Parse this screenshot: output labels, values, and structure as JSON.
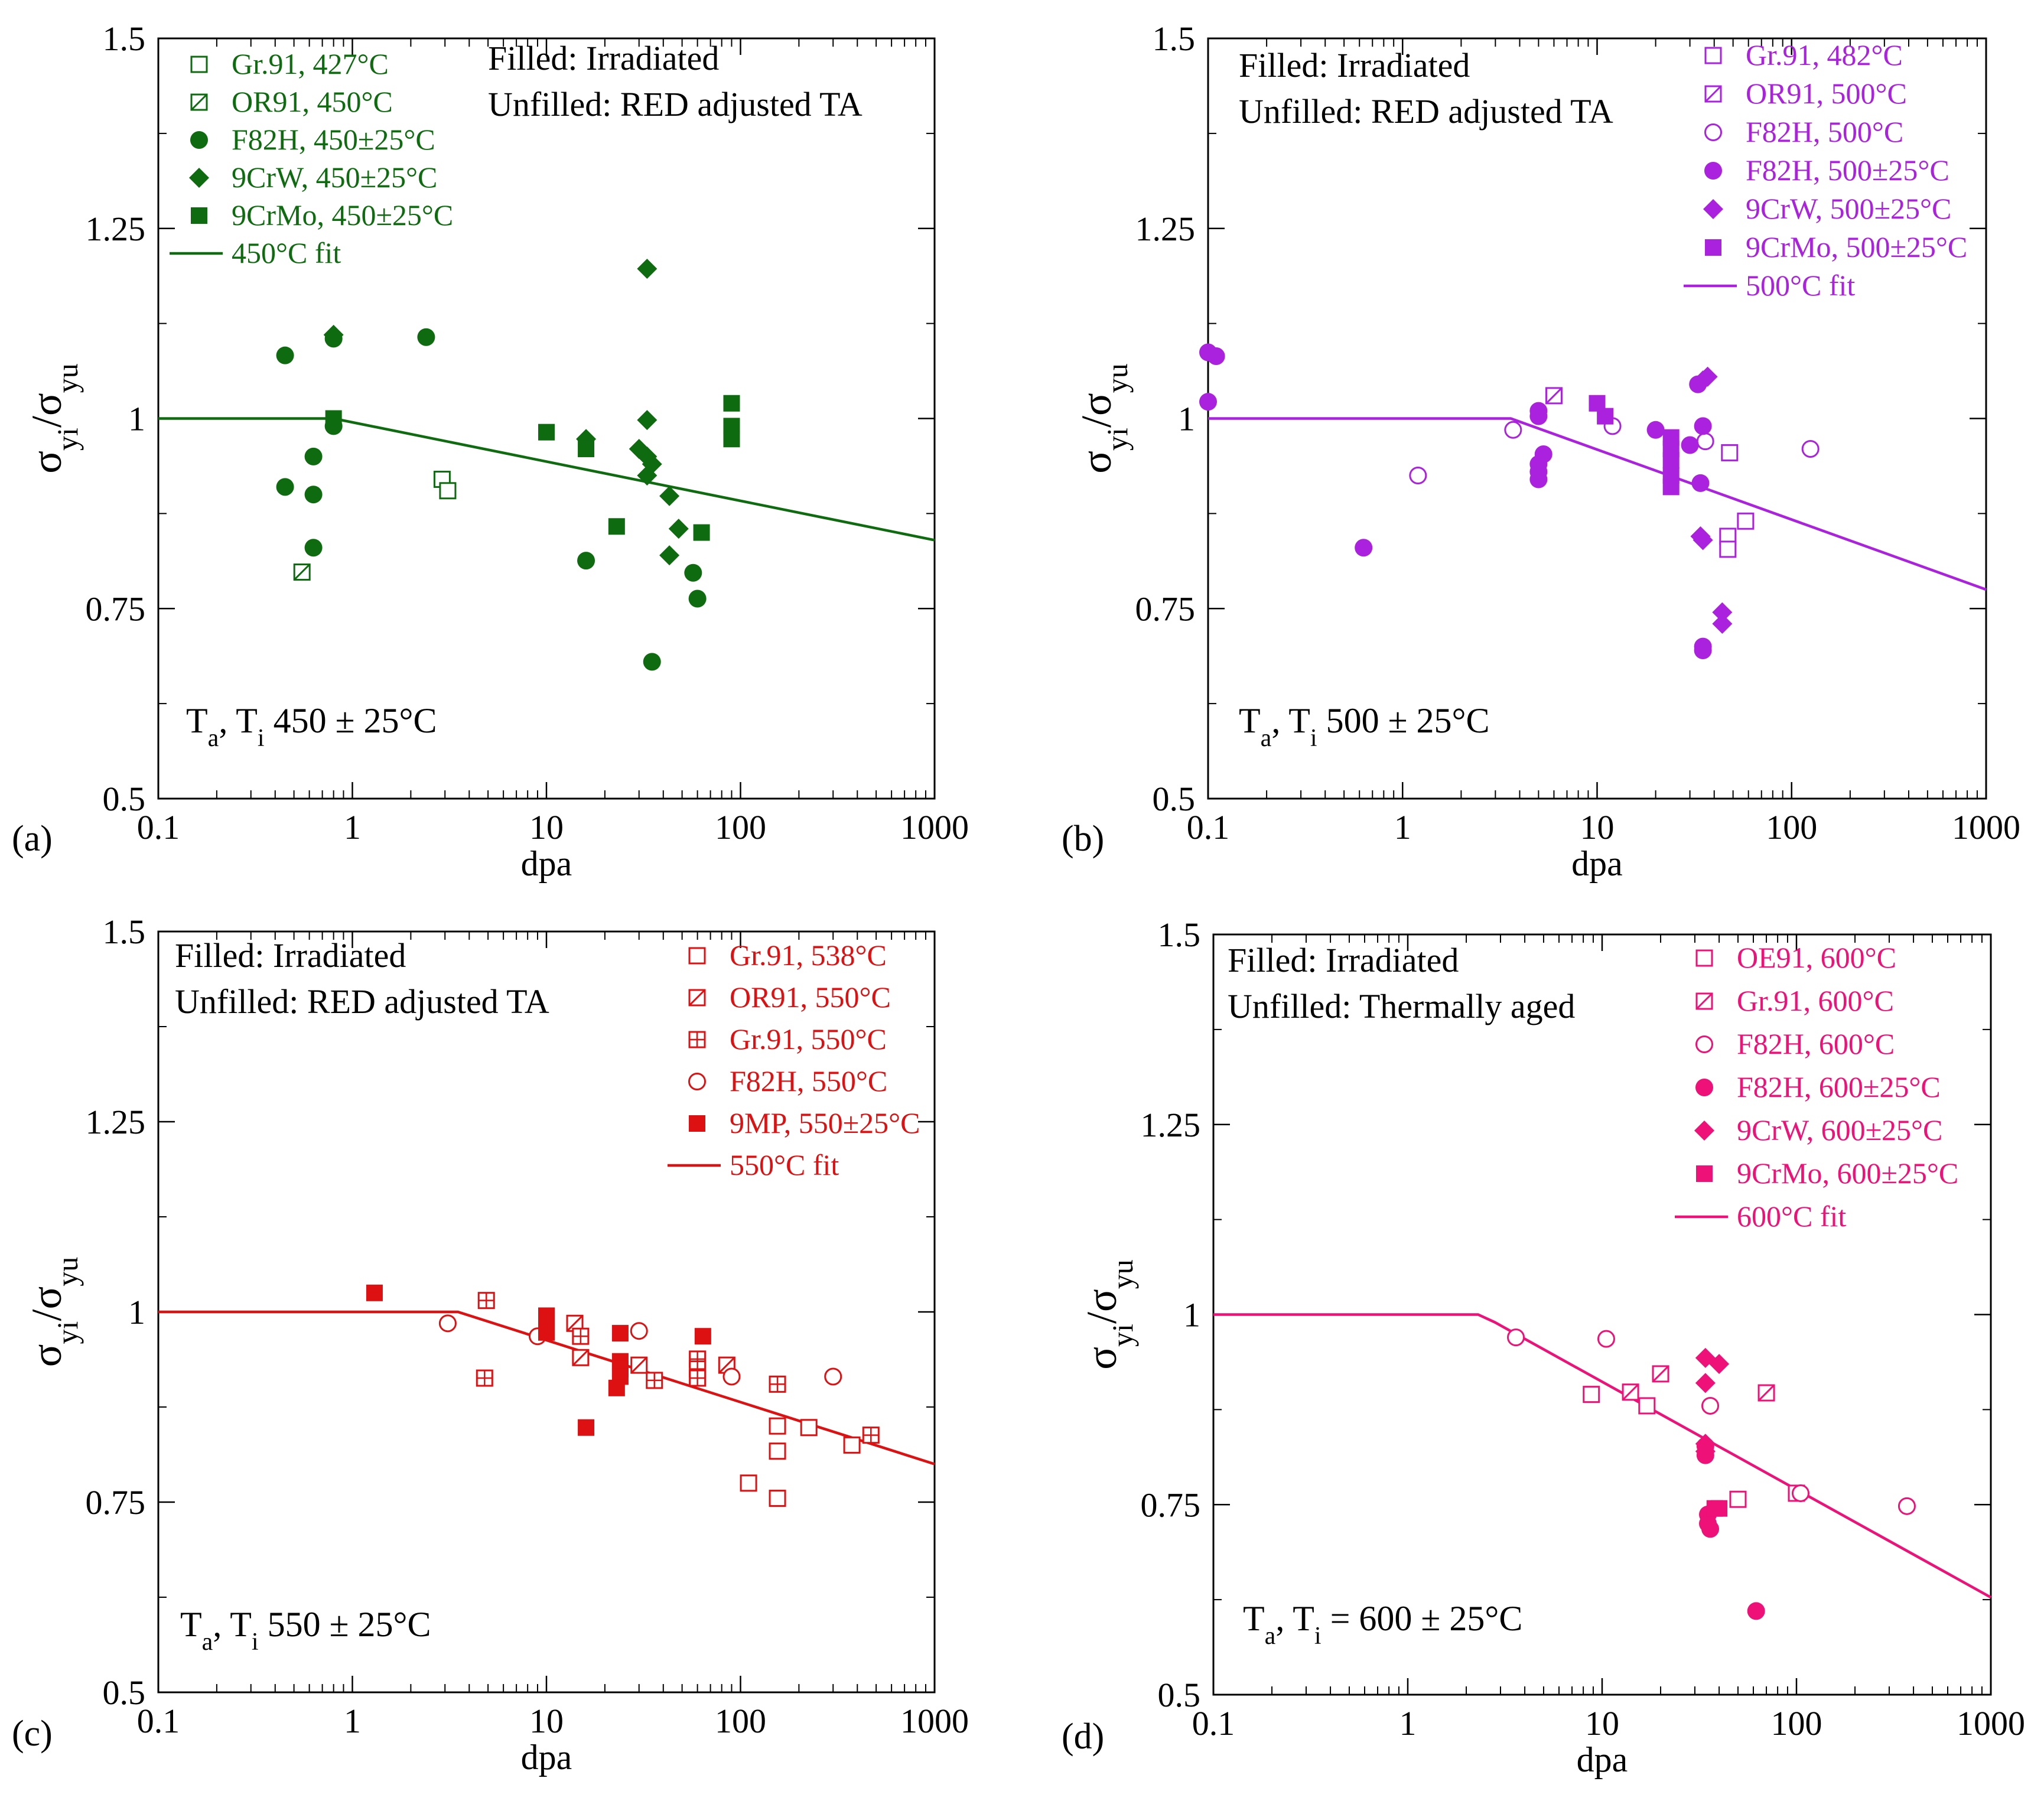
{
  "figure": {
    "type": "multi-panel scatter with fit lines"
  },
  "chart_data": [
    {
      "panel_label": "(a)",
      "type": "scatter",
      "xscale": "log",
      "xlim": [
        0.1,
        1000
      ],
      "ylim": [
        0.5,
        1.5
      ],
      "xlabel": "dpa",
      "ylabel": {
        "main": "σ",
        "sub1": "yi",
        "mid": "/σ",
        "sub2": "yu"
      },
      "xticks": [
        0.1,
        1,
        10,
        100,
        1000
      ],
      "xtick_labels": [
        "0.1",
        "1",
        "10",
        "100",
        "1000"
      ],
      "yticks": [
        0.5,
        0.75,
        1,
        1.25,
        1.5
      ],
      "ytick_labels": [
        "0.5",
        "0.75",
        "1",
        "1.25",
        "1.5"
      ],
      "color": "#0f6b0f",
      "note": {
        "lines": [
          "Filled: Irradiated",
          "Unfilled: RED adjusted TA"
        ],
        "position": "top-center"
      },
      "legend_position": "top-left",
      "temp_label": {
        "t": "T",
        "a": "a",
        "sep": ", T",
        "i": "i",
        "rest": "  450 ± 25°C"
      },
      "series": [
        {
          "name": "Gr.91, 427°C",
          "marker": "square-open",
          "points": [
            [
              2.9,
              0.92
            ],
            [
              3.1,
              0.905
            ]
          ]
        },
        {
          "name": "OR91, 450°C",
          "marker": "square-slash",
          "points": [
            [
              0.55,
              0.798
            ]
          ]
        },
        {
          "name": "F82H, 450±25°C",
          "marker": "circle-filled",
          "points": [
            [
              0.45,
              1.083
            ],
            [
              0.45,
              0.91
            ],
            [
              0.63,
              0.95
            ],
            [
              0.63,
              0.9
            ],
            [
              0.63,
              0.83
            ],
            [
              0.8,
              1.105
            ],
            [
              0.8,
              0.99
            ],
            [
              2.4,
              1.107
            ],
            [
              16,
              0.813
            ],
            [
              35,
              0.68
            ],
            [
              57,
              0.797
            ],
            [
              60,
              0.763
            ]
          ]
        },
        {
          "name": "9CrW, 450±25°C",
          "marker": "diamond-filled",
          "points": [
            [
              0.8,
              1.11
            ],
            [
              16,
              0.973
            ],
            [
              30,
              0.96
            ],
            [
              33,
              1.197
            ],
            [
              33,
              0.998
            ],
            [
              33,
              0.95
            ],
            [
              33,
              0.925
            ],
            [
              35,
              0.94
            ],
            [
              43,
              0.898
            ],
            [
              43,
              0.82
            ],
            [
              48,
              0.855
            ]
          ]
        },
        {
          "name": "9CrMo, 450±25°C",
          "marker": "square-filled",
          "points": [
            [
              0.8,
              1.0
            ],
            [
              10,
              0.982
            ],
            [
              16,
              0.96
            ],
            [
              23,
              0.858
            ],
            [
              63,
              0.85
            ],
            [
              90,
              1.02
            ],
            [
              90,
              0.99
            ],
            [
              90,
              0.973
            ]
          ]
        },
        {
          "name": "450°C fit",
          "marker": "line",
          "points": [
            [
              0.1,
              1.0
            ],
            [
              0.8,
              1.0
            ],
            [
              1000,
              0.84
            ]
          ]
        }
      ]
    },
    {
      "panel_label": "(b)",
      "type": "scatter",
      "xscale": "log",
      "xlim": [
        0.1,
        1000
      ],
      "ylim": [
        0.5,
        1.5
      ],
      "xlabel": "dpa",
      "ylabel": {
        "main": "σ",
        "sub1": "yi",
        "mid": "/σ",
        "sub2": "yu"
      },
      "xticks": [
        0.1,
        1,
        10,
        100,
        1000
      ],
      "xtick_labels": [
        "0.1",
        "1",
        "10",
        "100",
        "1000"
      ],
      "yticks": [
        0.5,
        0.75,
        1,
        1.25,
        1.5
      ],
      "ytick_labels": [
        "0.5",
        "0.75",
        "1",
        "1.25",
        "1.5"
      ],
      "color": "#aa22dd",
      "note": {
        "lines": [
          "Filled: Irradiated",
          "Unfilled: RED adjusted TA"
        ],
        "position": "top-left"
      },
      "legend_position": "top-right",
      "temp_label": {
        "t": "T",
        "a": "a",
        "sep": ", T",
        "i": "i",
        "rest": "  500 ± 25°C"
      },
      "series": [
        {
          "name": "Gr.91, 482°C",
          "marker": "square-open",
          "points": [
            [
              48,
              0.955
            ],
            [
              47,
              0.845
            ],
            [
              47,
              0.828
            ],
            [
              58,
              0.865
            ]
          ]
        },
        {
          "name": "OR91, 500°C",
          "marker": "square-slash",
          "points": [
            [
              6,
              1.03
            ]
          ]
        },
        {
          "name": "F82H, 500°C",
          "marker": "circle-open",
          "points": [
            [
              1.2,
              0.925
            ],
            [
              3.7,
              0.985
            ],
            [
              12,
              0.99
            ],
            [
              36,
              0.97
            ],
            [
              125,
              0.96
            ]
          ]
        },
        {
          "name": "F82H, 500±25°C",
          "marker": "circle-filled",
          "points": [
            [
              0.1,
              1.087
            ],
            [
              0.11,
              1.082
            ],
            [
              0.1,
              1.022
            ],
            [
              0.63,
              0.83
            ],
            [
              5,
              1.003
            ],
            [
              5,
              1.01
            ],
            [
              5,
              0.94
            ],
            [
              5,
              0.93
            ],
            [
              5,
              0.92
            ],
            [
              5.3,
              0.953
            ],
            [
              20,
              0.985
            ],
            [
              30,
              0.965
            ],
            [
              33,
              1.045
            ],
            [
              34,
              0.915
            ],
            [
              35,
              0.99
            ],
            [
              35,
              0.7
            ],
            [
              35,
              0.695
            ]
          ]
        },
        {
          "name": "9CrW, 500±25°C",
          "marker": "diamond-filled",
          "points": [
            [
              35,
              1.05
            ],
            [
              37,
              1.055
            ],
            [
              34,
              0.845
            ],
            [
              35,
              0.84
            ],
            [
              44,
              0.745
            ],
            [
              44,
              0.73
            ]
          ]
        },
        {
          "name": "9CrMo, 500±25°C",
          "marker": "square-filled",
          "points": [
            [
              10,
              1.02
            ],
            [
              11,
              1.003
            ],
            [
              24,
              0.975
            ],
            [
              24,
              0.96
            ],
            [
              24,
              0.945
            ],
            [
              24,
              0.925
            ],
            [
              24,
              0.91
            ]
          ]
        },
        {
          "name": "500°C fit",
          "marker": "line",
          "points": [
            [
              0.1,
              1.0
            ],
            [
              3.6,
              1.0
            ],
            [
              1000,
              0.775
            ]
          ]
        }
      ]
    },
    {
      "panel_label": "(c)",
      "type": "scatter",
      "xscale": "log",
      "xlim": [
        0.1,
        1000
      ],
      "ylim": [
        0.5,
        1.5
      ],
      "xlabel": "dpa",
      "ylabel": {
        "main": "σ",
        "sub1": "yi",
        "mid": "/σ",
        "sub2": "yu"
      },
      "xticks": [
        0.1,
        1,
        10,
        100,
        1000
      ],
      "xtick_labels": [
        "0.1",
        "1",
        "10",
        "100",
        "1000"
      ],
      "yticks": [
        0.5,
        0.75,
        1,
        1.25,
        1.5
      ],
      "ytick_labels": [
        "0.5",
        "0.75",
        "1",
        "1.25",
        "1.5"
      ],
      "color": "#dd1111",
      "note": {
        "lines": [
          "Filled: Irradiated",
          "Unfilled: RED adjusted TA"
        ],
        "position": "top-left"
      },
      "legend_position": "top-right",
      "temp_label": {
        "t": "T",
        "a": "a",
        "sep": ", T",
        "i": "i",
        "rest": "  550 ± 25°C"
      },
      "series": [
        {
          "name": "Gr.91, 538°C",
          "marker": "square-open",
          "points": [
            [
              155,
              0.85
            ],
            [
              155,
              0.817
            ],
            [
              110,
              0.775
            ],
            [
              155,
              0.755
            ],
            [
              225,
              0.848
            ],
            [
              375,
              0.825
            ]
          ]
        },
        {
          "name": "OR91, 550°C",
          "marker": "square-slash",
          "points": [
            [
              14,
              0.985
            ],
            [
              15,
              0.94
            ],
            [
              30,
              0.93
            ],
            [
              85,
              0.93
            ]
          ]
        },
        {
          "name": "Gr.91, 550°C",
          "marker": "square-plus",
          "points": [
            [
              4.9,
              1.015
            ],
            [
              4.8,
              0.913
            ],
            [
              15,
              0.968
            ],
            [
              36,
              0.91
            ],
            [
              60,
              0.938
            ],
            [
              60,
              0.925
            ],
            [
              60,
              0.913
            ],
            [
              155,
              0.905
            ],
            [
              470,
              0.838
            ]
          ]
        },
        {
          "name": "F82H, 550°C",
          "marker": "circle-open",
          "points": [
            [
              3.1,
              0.985
            ],
            [
              9,
              0.968
            ],
            [
              30,
              0.975
            ],
            [
              90,
              0.915
            ],
            [
              300,
              0.915
            ]
          ]
        },
        {
          "name": "9MP, 550±25°C",
          "marker": "square-filled",
          "points": [
            [
              1.3,
              1.025
            ],
            [
              10,
              0.995
            ],
            [
              10,
              0.985
            ],
            [
              10,
              0.973
            ],
            [
              16,
              0.848
            ],
            [
              24,
              0.972
            ],
            [
              24,
              0.935
            ],
            [
              24,
              0.925
            ],
            [
              24,
              0.915
            ],
            [
              23,
              0.9
            ],
            [
              64,
              0.968
            ]
          ]
        },
        {
          "name": "550°C fit",
          "marker": "line",
          "points": [
            [
              0.1,
              1.0
            ],
            [
              3.5,
              1.0
            ],
            [
              1000,
              0.8
            ]
          ]
        }
      ]
    },
    {
      "panel_label": "(d)",
      "type": "scatter",
      "xscale": "log",
      "xlim": [
        0.1,
        1000
      ],
      "ylim": [
        0.5,
        1.5
      ],
      "xlabel": "dpa",
      "ylabel": {
        "main": "σ",
        "sub1": "yi",
        "mid": "/σ",
        "sub2": "yu"
      },
      "xticks": [
        0.1,
        1,
        10,
        100,
        1000
      ],
      "xtick_labels": [
        "0.1",
        "1",
        "10",
        "100",
        "1000"
      ],
      "yticks": [
        0.5,
        0.75,
        1,
        1.25,
        1.5
      ],
      "ytick_labels": [
        "0.5",
        "0.75",
        "1",
        "1.25",
        "1.5"
      ],
      "color": "#ee1177",
      "note": {
        "lines": [
          "Filled: Irradiated",
          "Unfilled: Thermally aged"
        ],
        "position": "top-left"
      },
      "legend_position": "top-right",
      "temp_label": {
        "t": "T",
        "a": "a",
        "sep": ", T",
        "i": "i",
        "rest": " = 600 ± 25°C"
      },
      "series": [
        {
          "name": "OE91, 600°C",
          "marker": "square-open",
          "points": [
            [
              8.8,
              0.895
            ],
            [
              17,
              0.88
            ],
            [
              50,
              0.757
            ],
            [
              100,
              0.765
            ]
          ]
        },
        {
          "name": "Gr.91, 600°C",
          "marker": "square-slash",
          "points": [
            [
              14,
              0.898
            ],
            [
              20,
              0.922
            ],
            [
              70,
              0.897
            ]
          ]
        },
        {
          "name": "F82H, 600°C",
          "marker": "circle-open",
          "points": [
            [
              3.6,
              0.97
            ],
            [
              10.5,
              0.968
            ],
            [
              36,
              0.88
            ],
            [
              105,
              0.765
            ],
            [
              370,
              0.748
            ]
          ]
        },
        {
          "name": "F82H, 600±25°C",
          "marker": "circle-filled",
          "points": [
            [
              34,
              0.827
            ],
            [
              34,
              0.815
            ],
            [
              35,
              0.737
            ],
            [
              35,
              0.725
            ],
            [
              36,
              0.718
            ],
            [
              62,
              0.61
            ]
          ]
        },
        {
          "name": "9CrW, 600±25°C",
          "marker": "diamond-filled",
          "points": [
            [
              34,
              0.943
            ],
            [
              40,
              0.935
            ],
            [
              34,
              0.91
            ],
            [
              34,
              0.83
            ],
            [
              34,
              0.82
            ]
          ]
        },
        {
          "name": "9CrMo, 600±25°C",
          "marker": "square-filled",
          "points": [
            [
              38,
              0.745
            ],
            [
              40,
              0.745
            ]
          ]
        },
        {
          "name": "600°C fit",
          "marker": "line",
          "points": [
            [
              0.1,
              1.0
            ],
            [
              2.3,
              1.0
            ],
            [
              2.8,
              0.99
            ],
            [
              1000,
              0.628
            ]
          ]
        }
      ]
    }
  ]
}
